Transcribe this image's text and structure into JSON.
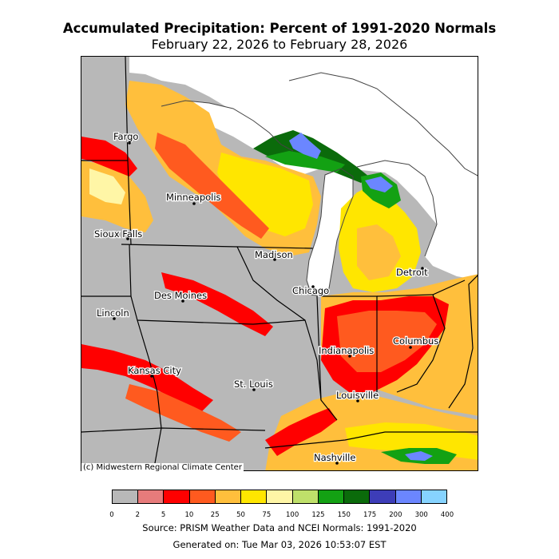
{
  "header": {
    "title": "Accumulated Precipitation: Percent of 1991-2020 Normals",
    "date_range": "February 22, 2026 to February 28, 2026"
  },
  "map": {
    "credit": "(c) Midwestern Regional Climate Center",
    "cities": [
      {
        "name": "Fargo"
      },
      {
        "name": "Minneapolis"
      },
      {
        "name": "Sioux Falls"
      },
      {
        "name": "Madison"
      },
      {
        "name": "Detroit"
      },
      {
        "name": "Chicago"
      },
      {
        "name": "Des Moines"
      },
      {
        "name": "Lincoln"
      },
      {
        "name": "Columbus"
      },
      {
        "name": "Indianapolis"
      },
      {
        "name": "Kansas City"
      },
      {
        "name": "St. Louis"
      },
      {
        "name": "Louisville"
      },
      {
        "name": "Nashville"
      }
    ]
  },
  "legend": {
    "ticks": [
      "0",
      "2",
      "5",
      "10",
      "25",
      "50",
      "75",
      "100",
      "125",
      "150",
      "175",
      "200",
      "300",
      "400"
    ],
    "colors": [
      "#b8b8b8",
      "#e77b7b",
      "#ff0000",
      "#ff5a1f",
      "#ffbf3c",
      "#ffe600",
      "#fff6a6",
      "#bfe06a",
      "#13a113",
      "#0b6b0b",
      "#3d3db8",
      "#6b86ff",
      "#86d3ff"
    ]
  },
  "footer": {
    "source": "Source: PRISM Weather Data and NCEI Normals: 1991-2020",
    "generated": "Generated on: Tue Mar 03, 2026 10:53:07 EST"
  }
}
